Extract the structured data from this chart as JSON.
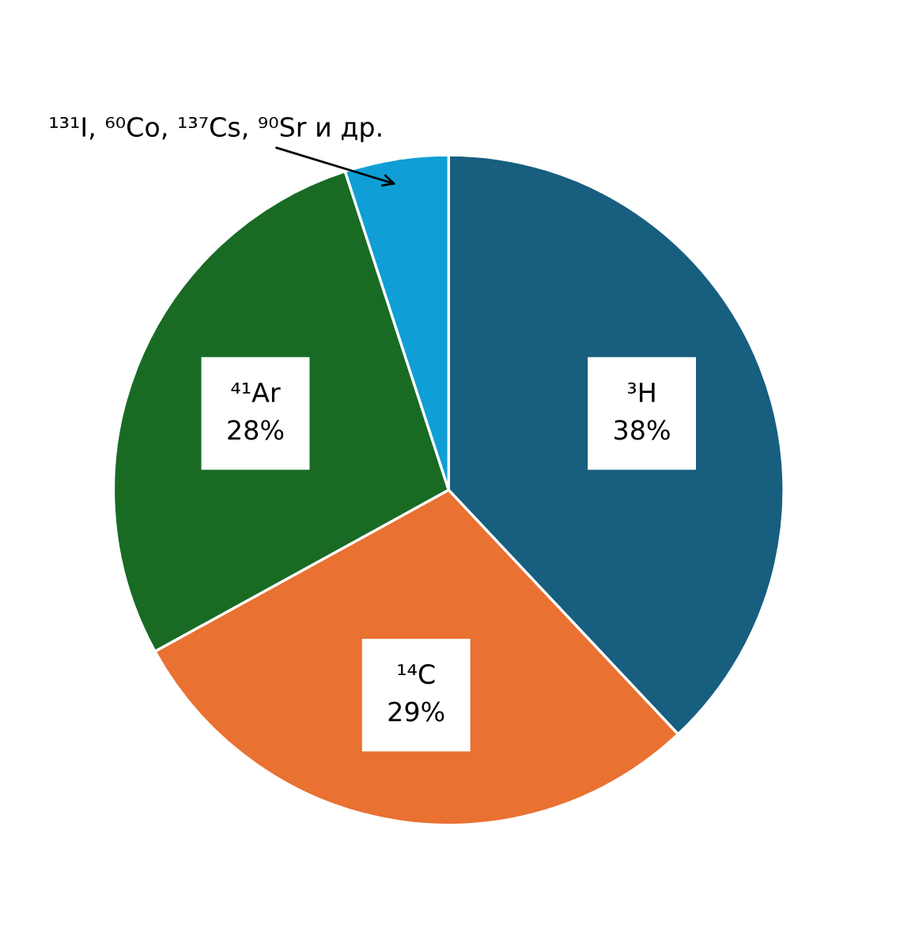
{
  "chart_data": {
    "type": "pie",
    "categories": [
      "³H",
      "¹⁴C",
      "⁴¹Ar",
      "¹³¹I, ⁶⁰Co, ¹³⁷Cs, ⁹⁰Sr и др."
    ],
    "values": [
      38,
      29,
      28,
      5
    ],
    "value_labels": [
      "38%",
      "29%",
      "28%",
      null
    ],
    "colors": [
      "#175e7f",
      "#e97132",
      "#196b24",
      "#0f9ed5"
    ]
  }
}
